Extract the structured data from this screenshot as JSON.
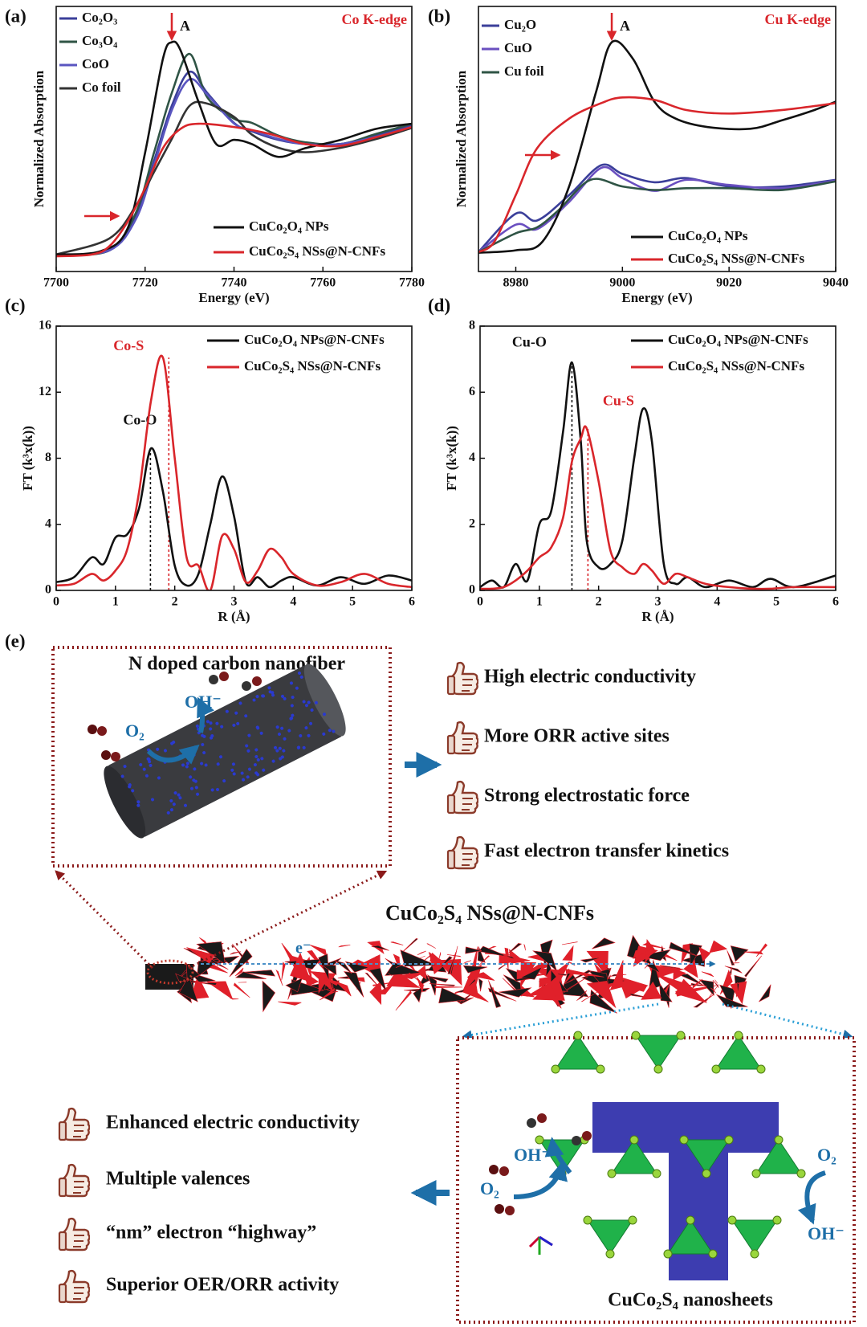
{
  "chart_data": [
    {
      "type": "line",
      "panel": "(a)",
      "xlabel": "Energy (eV)",
      "ylabel": "Normalized Absorption",
      "edge_label": "Co K-edge",
      "peak_label": {
        "text": "A",
        "x": 7726,
        "y": 1.038
      },
      "xlim": [
        7700,
        7780
      ],
      "ylim": [
        0,
        1.2
      ],
      "xticks": [
        7700,
        7720,
        7740,
        7760,
        7780
      ],
      "series": [
        {
          "name": "Co₂O₃",
          "color": "#3b3f9a",
          "x": [
            7700,
            7712,
            7718,
            7722,
            7726,
            7730,
            7734,
            7740,
            7744,
            7750,
            7756,
            7764,
            7772,
            7780
          ],
          "values": [
            0.077,
            0.096,
            0.25,
            0.5,
            0.75,
            0.904,
            0.808,
            0.673,
            0.635,
            0.596,
            0.577,
            0.577,
            0.615,
            0.662
          ]
        },
        {
          "name": "Co₃O₄",
          "color": "#2f5445",
          "x": [
            7700,
            7712,
            7718,
            7722,
            7726,
            7730,
            7734,
            7740,
            7744,
            7750,
            7756,
            7764,
            7772,
            7780
          ],
          "values": [
            0.077,
            0.096,
            0.269,
            0.538,
            0.808,
            0.985,
            0.788,
            0.692,
            0.673,
            0.615,
            0.585,
            0.577,
            0.623,
            0.669
          ]
        },
        {
          "name": "CoO",
          "color": "#5a55c0",
          "x": [
            7700,
            7712,
            7718,
            7722,
            7726,
            7730,
            7734,
            7740,
            7744,
            7750,
            7756,
            7764,
            7772,
            7780
          ],
          "values": [
            0.077,
            0.096,
            0.24,
            0.48,
            0.73,
            0.87,
            0.8,
            0.67,
            0.64,
            0.6,
            0.577,
            0.577,
            0.61,
            0.655
          ]
        },
        {
          "name": "Co foil",
          "color": "#333333",
          "x": [
            7700,
            7712,
            7718,
            7722,
            7726,
            7730,
            7734,
            7740,
            7744,
            7750,
            7756,
            7764,
            7772,
            7780
          ],
          "values": [
            0.077,
            0.15,
            0.3,
            0.45,
            0.6,
            0.75,
            0.76,
            0.7,
            0.62,
            0.56,
            0.54,
            0.56,
            0.6,
            0.65
          ]
        },
        {
          "name": "CuCo₂O₄ NPs",
          "color": "#111111",
          "x": [
            7700,
            7710,
            7716,
            7720,
            7724,
            7726,
            7728,
            7732,
            7736,
            7740,
            7744,
            7750,
            7756,
            7764,
            7772,
            7780
          ],
          "values": [
            0.077,
            0.092,
            0.192,
            0.538,
            0.962,
            1.038,
            1.0,
            0.769,
            0.577,
            0.596,
            0.577,
            0.519,
            0.558,
            0.596,
            0.646,
            0.669
          ]
        },
        {
          "name": "CuCo₂S₄ NSs@N-CNFs",
          "color": "#d9262b",
          "x": [
            7700,
            7708,
            7712,
            7716,
            7720,
            7724,
            7728,
            7732,
            7740,
            7748,
            7756,
            7764,
            7772,
            7780
          ],
          "values": [
            0.069,
            0.077,
            0.115,
            0.223,
            0.377,
            0.558,
            0.646,
            0.669,
            0.654,
            0.623,
            0.577,
            0.569,
            0.608,
            0.654
          ]
        }
      ]
    },
    {
      "type": "line",
      "panel": "(b)",
      "xlabel": "Energy (eV)",
      "ylabel": "Normalized Absorption",
      "edge_label": "Cu K-edge",
      "peak_label": {
        "text": "A",
        "x": 8998,
        "y": 1.038
      },
      "xlim": [
        8973,
        9040
      ],
      "ylim": [
        0,
        1.2
      ],
      "xticks": [
        8980,
        9000,
        9020,
        9040
      ],
      "series": [
        {
          "name": "Cu₂O",
          "color": "#3b3f9a",
          "x": [
            8973,
            8980,
            8984,
            8990,
            8996,
            9000,
            9006,
            9012,
            9020,
            9030,
            9040
          ],
          "values": [
            0.088,
            0.262,
            0.231,
            0.346,
            0.481,
            0.442,
            0.404,
            0.423,
            0.385,
            0.385,
            0.415
          ]
        },
        {
          "name": "CuO",
          "color": "#6a4fc0",
          "x": [
            8973,
            8980,
            8984,
            8990,
            8996,
            9000,
            9006,
            9012,
            9020,
            9030,
            9040
          ],
          "values": [
            0.088,
            0.212,
            0.192,
            0.315,
            0.469,
            0.423,
            0.365,
            0.415,
            0.392,
            0.377,
            0.412
          ]
        },
        {
          "name": "Cu foil",
          "color": "#2f5445",
          "x": [
            8973,
            8980,
            8984,
            8988,
            8994,
            9000,
            9006,
            9012,
            9020,
            9030,
            9040
          ],
          "values": [
            0.088,
            0.173,
            0.2,
            0.277,
            0.415,
            0.385,
            0.369,
            0.377,
            0.377,
            0.369,
            0.408
          ]
        },
        {
          "name": "CuCo₂O₄ NPs",
          "color": "#111111",
          "x": [
            8973,
            8980,
            8985,
            8990,
            8995,
            8998,
            9002,
            9006,
            9010,
            9016,
            9024,
            9030,
            9036,
            9040
          ],
          "values": [
            0.085,
            0.096,
            0.135,
            0.385,
            0.808,
            1.038,
            0.962,
            0.769,
            0.692,
            0.654,
            0.646,
            0.685,
            0.731,
            0.769
          ]
        },
        {
          "name": "CuCo₂S₄ NSs@N-CNFs",
          "color": "#d9262b",
          "x": [
            8973,
            8976,
            8980,
            8984,
            8990,
            8996,
            9000,
            9006,
            9012,
            9020,
            9030,
            9040
          ],
          "values": [
            0.088,
            0.135,
            0.346,
            0.558,
            0.692,
            0.762,
            0.788,
            0.777,
            0.731,
            0.715,
            0.731,
            0.762
          ]
        }
      ]
    },
    {
      "type": "line",
      "panel": "(c)",
      "xlabel": "R (Å)",
      "ylabel": "FT (k³x(k))",
      "xlim": [
        0,
        6
      ],
      "ylim": [
        0,
        16
      ],
      "xticks": [
        0,
        1,
        2,
        3,
        4,
        5,
        6
      ],
      "yticks": [
        0,
        4,
        8,
        12,
        16
      ],
      "x": [
        0,
        0.3,
        0.6,
        0.8,
        1.0,
        1.2,
        1.4,
        1.6,
        1.8,
        2.0,
        2.2,
        2.4,
        2.6,
        2.8,
        3.0,
        3.2,
        3.4,
        3.6,
        3.8,
        4.0,
        4.4,
        4.8,
        5.2,
        5.6,
        6.0
      ],
      "series": [
        {
          "name": "CuCo₂O₄ NPs@N-CNFs",
          "color": "#111111",
          "values": [
            0.5,
            0.8,
            2.0,
            1.6,
            3.2,
            3.4,
            5.0,
            8.6,
            6.0,
            1.5,
            0.3,
            1.0,
            4.0,
            6.9,
            4.5,
            0.5,
            0.8,
            0.2,
            0.6,
            0.8,
            0.3,
            0.8,
            0.4,
            0.9,
            0.6
          ]
        },
        {
          "name": "CuCo₂S₄ NSs@N-CNFs",
          "color": "#d9262b",
          "values": [
            0.3,
            0.4,
            1.0,
            0.6,
            1.2,
            2.5,
            6.0,
            11.5,
            14.1,
            8.0,
            2.0,
            1.5,
            0,
            3.3,
            2.5,
            0.5,
            1.2,
            2.5,
            2.0,
            1.0,
            0.3,
            0.5,
            1.0,
            0.4,
            0.2
          ]
        }
      ],
      "annotations": [
        {
          "text": "Co-O",
          "x": 1.59,
          "y": 8.6,
          "color": "#111111"
        },
        {
          "text": "Co-S",
          "x": 1.9,
          "y": 14.1,
          "color": "#d9262b"
        }
      ]
    },
    {
      "type": "line",
      "panel": "(d)",
      "xlabel": "R (Å)",
      "ylabel": "FT (k³x(k))",
      "xlim": [
        0,
        6
      ],
      "ylim": [
        0,
        8
      ],
      "xticks": [
        0,
        1,
        2,
        3,
        4,
        5,
        6
      ],
      "yticks": [
        0,
        2,
        4,
        6,
        8
      ],
      "x": [
        0,
        0.2,
        0.4,
        0.6,
        0.8,
        1.0,
        1.2,
        1.4,
        1.55,
        1.7,
        1.8,
        2.0,
        2.2,
        2.4,
        2.6,
        2.75,
        2.9,
        3.1,
        3.3,
        3.5,
        3.8,
        4.2,
        4.6,
        4.9,
        5.3,
        6.0
      ],
      "series": [
        {
          "name": "CuCo₂O₄ NPs@N-CNFs",
          "color": "#111111",
          "values": [
            0.1,
            0.3,
            0.1,
            0.8,
            0.3,
            2.0,
            2.4,
            4.8,
            6.9,
            4.5,
            1.5,
            0.7,
            0.8,
            1.5,
            4.0,
            5.5,
            4.5,
            0.8,
            0.2,
            0.4,
            0.1,
            0.3,
            0.1,
            0.35,
            0.1,
            0.45
          ]
        },
        {
          "name": "CuCo₂S₄ NSs@N-CNFs",
          "color": "#d9262b",
          "values": [
            0.05,
            0.05,
            0.1,
            0.3,
            0.6,
            1.0,
            1.3,
            2.2,
            3.9,
            4.6,
            4.9,
            3.3,
            1.2,
            0.7,
            0.5,
            0.8,
            0.6,
            0.2,
            0.5,
            0.4,
            0.2,
            0.1,
            0.05,
            0.05,
            0.1,
            0.1
          ]
        }
      ],
      "annotations": [
        {
          "text": "Cu-O",
          "x": 1.55,
          "y": 6.9,
          "color": "#111111"
        },
        {
          "text": "Cu-S",
          "x": 1.82,
          "y": 4.9,
          "color": "#d9262b"
        }
      ]
    }
  ],
  "schematic": {
    "label": "(e)",
    "fiber_title": "N doped carbon nanofiber",
    "fiber_species": [
      "O₂",
      "OH⁻"
    ],
    "fiber_benefits": [
      "High electric conductivity",
      "More ORR active sites",
      "Strong electrostatic force",
      "Fast electron transfer kinetics"
    ],
    "composite_title": "CuCo₂S₄ NSs@N-CNFs",
    "electron": "e⁻",
    "sheet_benefits": [
      "Enhanced electric conductivity",
      "Multiple valences",
      "“nm” electron “highway”",
      "Superior OER/ORR activity"
    ],
    "sheet_species": [
      "OH⁻",
      "O₂",
      "O₂",
      "OH⁻"
    ],
    "sheet_title": "CuCo₂S₄ nanosheets"
  }
}
